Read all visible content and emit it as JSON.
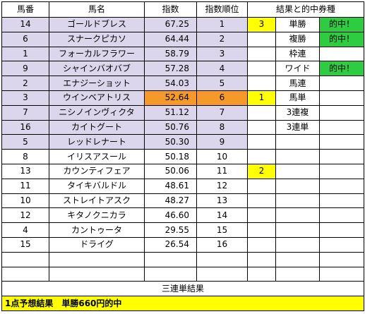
{
  "headers": [
    "馬番",
    "馬名",
    "指数",
    "指数順位",
    "結果と的中券種"
  ],
  "rows": [
    {
      "num": "14",
      "name": "ゴールドブレス",
      "idx": "67.25",
      "rank": "1",
      "res": "3",
      "ticket": "単勝",
      "hit": "的中！"
    },
    {
      "num": "6",
      "name": "スナークピカソ",
      "idx": "64.44",
      "rank": "2",
      "res": "",
      "ticket": "複勝",
      "hit": "的中！"
    },
    {
      "num": "1",
      "name": "フォーカルフラワー",
      "idx": "58.79",
      "rank": "3",
      "res": "",
      "ticket": "枠連",
      "hit": ""
    },
    {
      "num": "9",
      "name": "シャインバオバブ",
      "idx": "57.28",
      "rank": "4",
      "res": "",
      "ticket": "ワイド",
      "hit": "的中！"
    },
    {
      "num": "2",
      "name": "エナジーショット",
      "idx": "54.03",
      "rank": "5",
      "res": "",
      "ticket": "馬連",
      "hit": ""
    },
    {
      "num": "3",
      "name": "ウインベアトリス",
      "idx": "52.64",
      "rank": "6",
      "res": "1",
      "ticket": "馬単",
      "hit": ""
    },
    {
      "num": "7",
      "name": "ニシノインヴィクタ",
      "idx": "51.12",
      "rank": "7",
      "res": "",
      "ticket": "3連複",
      "hit": ""
    },
    {
      "num": "16",
      "name": "カイトグート",
      "idx": "50.76",
      "rank": "8",
      "res": "",
      "ticket": "3連単",
      "hit": ""
    },
    {
      "num": "5",
      "name": "レッドレナート",
      "idx": "50.30",
      "rank": "9",
      "res": "",
      "ticket": "",
      "hit": ""
    },
    {
      "num": "8",
      "name": "イリスアスール",
      "idx": "50.18",
      "rank": "10",
      "res": "",
      "ticket": "",
      "hit": ""
    },
    {
      "num": "13",
      "name": "カウンティフェア",
      "idx": "50.06",
      "rank": "11",
      "res": "2",
      "ticket": "",
      "hit": ""
    },
    {
      "num": "11",
      "name": "タイキバルドル",
      "idx": "48.61",
      "rank": "12",
      "res": "",
      "ticket": "",
      "hit": ""
    },
    {
      "num": "10",
      "name": "ストレイトアスク",
      "idx": "48.27",
      "rank": "13",
      "res": "",
      "ticket": "",
      "hit": ""
    },
    {
      "num": "12",
      "name": "キタノクニカラ",
      "idx": "46.60",
      "rank": "14",
      "res": "",
      "ticket": "",
      "hit": ""
    },
    {
      "num": "4",
      "name": "カントゥータ",
      "idx": "29.55",
      "rank": "15",
      "res": "",
      "ticket": "",
      "hit": ""
    },
    {
      "num": "15",
      "name": "ドライグ",
      "idx": "26.54",
      "rank": "16",
      "res": "",
      "ticket": "",
      "hit": ""
    }
  ],
  "summary_title": "三連単結果",
  "footer": "1点予想結果　単勝660円的中",
  "colors": {
    "top_rows": "#dcd6ec",
    "highlight": "#f59a2a",
    "result": "#ffff00",
    "hit": "#2ecc40"
  }
}
